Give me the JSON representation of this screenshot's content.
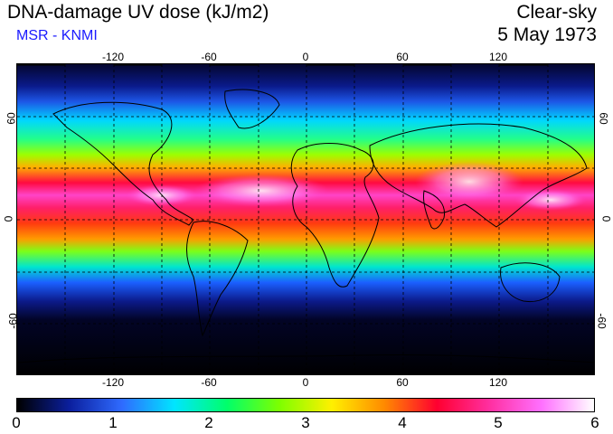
{
  "header": {
    "title": "DNA-damage UV dose (kJ/m2)",
    "subtitle": "MSR - KNMI",
    "condition": "Clear-sky",
    "date": "5 May 1973"
  },
  "map": {
    "longitude_ticks": [
      "-120",
      "-60",
      "0",
      "60",
      "120"
    ],
    "latitude_ticks": [
      "60",
      "0",
      "-60"
    ],
    "lon_range": [
      -180,
      180
    ],
    "lat_range": [
      -90,
      90
    ],
    "gridlines": "dashed every 30 degrees",
    "projection": "equirectangular"
  },
  "colorbar": {
    "labels": [
      "0",
      "1",
      "2",
      "3",
      "4",
      "5",
      "6"
    ],
    "range": [
      0,
      6
    ],
    "colors": [
      "#000000",
      "#0b1f9e",
      "#2f6bff",
      "#00e5ff",
      "#00ff6a",
      "#7dff00",
      "#fff000",
      "#ff8a00",
      "#ff0030",
      "#ff2fa0",
      "#ff70ff",
      "#ffffff"
    ]
  }
}
